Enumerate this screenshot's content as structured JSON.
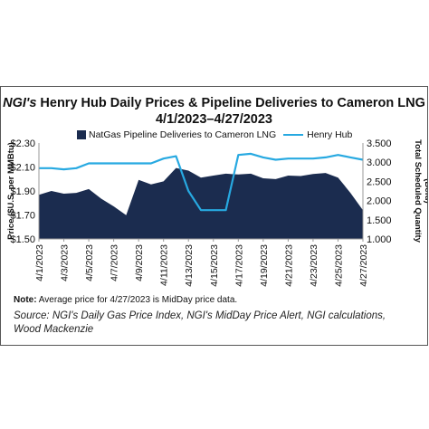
{
  "title_brand": "NGI's",
  "title_rest": " Henry Hub Daily Prices & Pipeline Deliveries to Cameron LNG",
  "subtitle": "4/1/2023–4/27/2023",
  "legend": {
    "area_label": "NatGas Pipeline Deliveries to Cameron LNG",
    "line_label": "Henry Hub"
  },
  "note_label": "Note:",
  "note_text": " Average price for 4/27/2023 is MidDay price data.",
  "source": "Source: NGI's Daily Gas Price Index, NGI's MidDay Price Alert, NGI calculations, Wood Mackenzie",
  "colors": {
    "area": "#1b2c4f",
    "line": "#27a9e1",
    "axis": "#333333"
  },
  "chart_data": {
    "type": "area",
    "x": [
      "4/1/2023",
      "4/2/2023",
      "4/3/2023",
      "4/4/2023",
      "4/5/2023",
      "4/6/2023",
      "4/7/2023",
      "4/8/2023",
      "4/9/2023",
      "4/10/2023",
      "4/11/2023",
      "4/12/2023",
      "4/13/2023",
      "4/14/2023",
      "4/15/2023",
      "4/16/2023",
      "4/17/2023",
      "4/18/2023",
      "4/19/2023",
      "4/20/2023",
      "4/21/2023",
      "4/22/2023",
      "4/23/2023",
      "4/24/2023",
      "4/25/2023",
      "4/26/2023",
      "4/27/2023"
    ],
    "x_tick_labels": [
      "4/1/2023",
      "4/3/2023",
      "4/5/2023",
      "4/7/2023",
      "4/9/2023",
      "4/11/2023",
      "4/13/2023",
      "4/15/2023",
      "4/17/2023",
      "4/19/2023",
      "4/21/2023",
      "4/23/2023",
      "4/25/2023",
      "4/27/2023"
    ],
    "series": [
      {
        "name": "NatGas Pipeline Deliveries to Cameron LNG",
        "axis": "right",
        "kind": "area",
        "values": [
          2150,
          2250,
          2180,
          2200,
          2300,
          2050,
          1850,
          1620,
          2540,
          2420,
          2500,
          2850,
          2780,
          2600,
          2650,
          2700,
          2680,
          2700,
          2580,
          2560,
          2650,
          2640,
          2690,
          2720,
          2600,
          2200,
          1750
        ]
      },
      {
        "name": "Henry Hub",
        "axis": "left",
        "kind": "line",
        "values": [
          2.09,
          2.09,
          2.08,
          2.09,
          2.13,
          2.13,
          2.13,
          2.13,
          2.13,
          2.13,
          2.17,
          2.19,
          1.9,
          1.74,
          1.74,
          1.74,
          2.2,
          2.21,
          2.18,
          2.16,
          2.17,
          2.17,
          2.17,
          2.18,
          2.2,
          2.18,
          2.16
        ]
      }
    ],
    "y_left": {
      "label": "Price ($U.S. per MMBtu)",
      "ylim": [
        1.5,
        2.3
      ],
      "ticks": [
        "$1.50",
        "$1.70",
        "$1.90",
        "$2.10",
        "$2.30"
      ],
      "tick_values": [
        1.5,
        1.7,
        1.9,
        2.1,
        2.3
      ]
    },
    "y_right": {
      "label": "Total Scheduled Quantity (Bcfd)",
      "ylim": [
        1000,
        3500
      ],
      "ticks": [
        "1.000",
        "1.500",
        "2.000",
        "2.500",
        "3.000",
        "3.500"
      ],
      "tick_values": [
        1000,
        1500,
        2000,
        2500,
        3000,
        3500
      ]
    },
    "grid": false,
    "legend_position": "top"
  }
}
